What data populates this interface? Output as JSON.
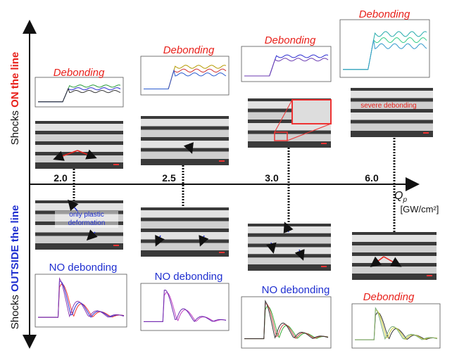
{
  "axis": {
    "top_label": {
      "prefix": "Shocks ",
      "emphasis": "ON the line"
    },
    "bottom_label": {
      "prefix": "Shocks ",
      "emphasis": "OUTSIDE the line"
    },
    "x_label": {
      "symbol": "Q",
      "subscript": "p",
      "unit": "[GW/cm²]"
    },
    "ticks": [
      "2.0",
      "2.5",
      "3.0",
      "6.0"
    ]
  },
  "panels_top": [
    {
      "label": "Debonding"
    },
    {
      "label": "Debonding"
    },
    {
      "label": "Debonding"
    },
    {
      "label": "Debonding",
      "annotation": "severe debonding"
    }
  ],
  "panels_bottom": [
    {
      "label": "NO debonding",
      "annotation": "only plastic deformation"
    },
    {
      "label": "NO debonding"
    },
    {
      "label": "NO debonding"
    },
    {
      "label": "Debonding"
    }
  ]
}
